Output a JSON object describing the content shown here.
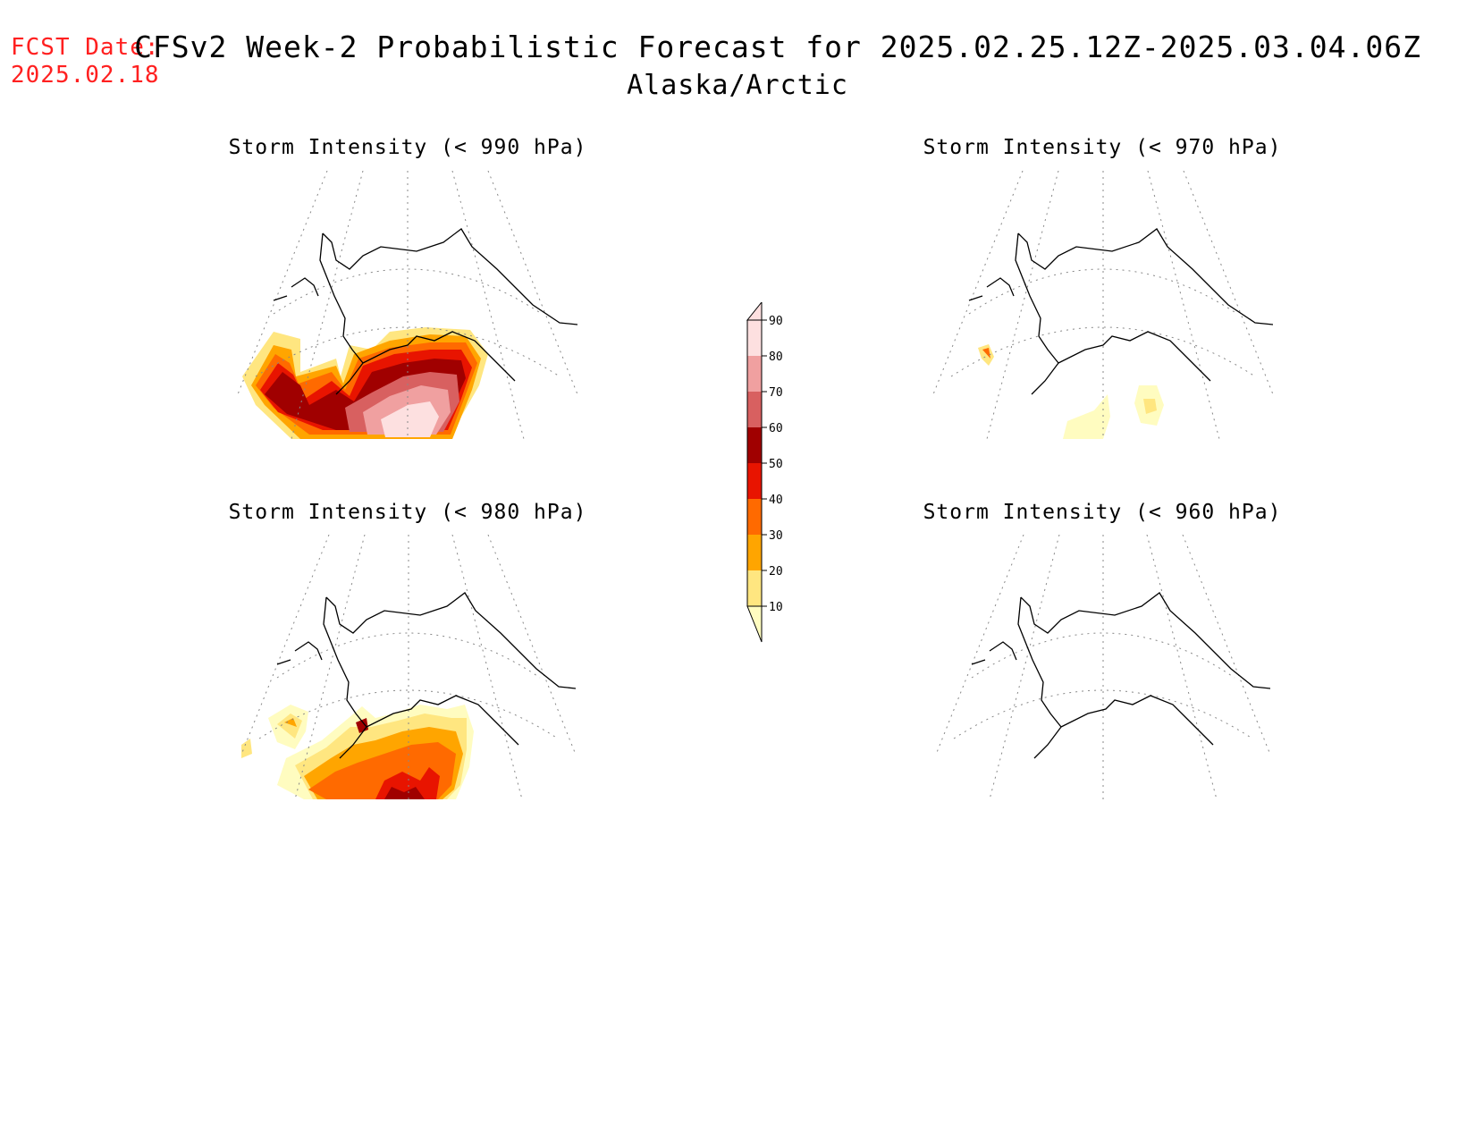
{
  "fcst": {
    "line1": "FCST Date:",
    "line2": "2025.02.18"
  },
  "title": {
    "main": "CFSv2 Week-2 Probabilistic Forecast for 2025.02.25.12Z-2025.03.04.06Z",
    "region": "Alaska/Arctic"
  },
  "panels": [
    {
      "title": "Storm Intensity (< 990 hPa)"
    },
    {
      "title": "Storm Intensity (< 970 hPa)"
    },
    {
      "title": "Storm Intensity (< 980 hPa)"
    },
    {
      "title": "Storm Intensity (< 960 hPa)"
    }
  ],
  "colorbar": {
    "levels": [
      "10",
      "20",
      "30",
      "40",
      "50",
      "60",
      "70",
      "80",
      "90"
    ],
    "colors": [
      "#fffcc0",
      "#ffe680",
      "#ffa500",
      "#ff6a00",
      "#e81400",
      "#a00000",
      "#d86060",
      "#f0a0a0",
      "#fde0e0"
    ]
  }
}
